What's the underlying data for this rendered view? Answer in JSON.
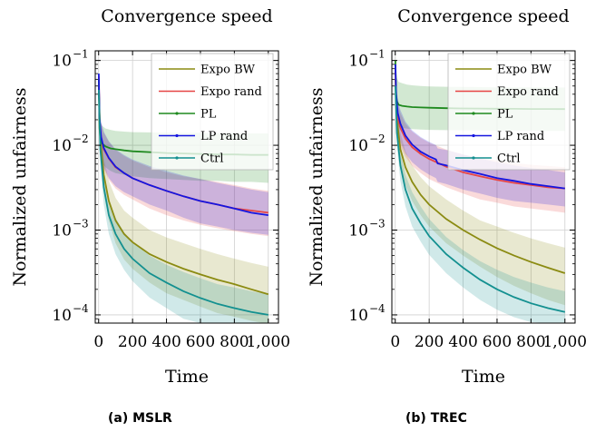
{
  "chart_data": [
    {
      "type": "line",
      "title": "Convergence speed",
      "xlabel": "Time",
      "ylabel": "Normalized unfairness",
      "xlim": [
        -20,
        1060
      ],
      "ylim": [
        8e-05,
        0.13
      ],
      "yscale": "log",
      "xticks": [
        0,
        200,
        400,
        600,
        800,
        1000
      ],
      "xtick_labels": [
        "0",
        "200",
        "400",
        "600",
        "800",
        "1,000"
      ],
      "yticks": [
        0.0001,
        0.001,
        0.01,
        0.1
      ],
      "ytick_labels": [
        [
          "10",
          "−4"
        ],
        [
          "10",
          "−3"
        ],
        [
          "10",
          "−2"
        ],
        [
          "10",
          "−1"
        ]
      ],
      "grid": true,
      "legend_position": "top-right",
      "caption": "(a) MSLR",
      "series": [
        {
          "name": "Expo BW",
          "color": "#8b8b12",
          "x": [
            1,
            10,
            30,
            60,
            100,
            150,
            200,
            300,
            400,
            500,
            600,
            700,
            800,
            900,
            1000
          ],
          "y": [
            0.05,
            0.012,
            0.0045,
            0.0022,
            0.0013,
            0.0009,
            0.00072,
            0.00052,
            0.00042,
            0.00035,
            0.0003,
            0.00026,
            0.00023,
            0.0002,
            0.000175
          ],
          "band_low": [
            0.04,
            0.008,
            0.0028,
            0.0013,
            0.0007,
            0.00045,
            0.00035,
            0.00024,
            0.00018,
            0.00015,
            0.000125,
            0.000105,
            9.5e-05,
            8.5e-05,
            7.8e-05
          ],
          "band_high": [
            0.07,
            0.018,
            0.007,
            0.0038,
            0.0024,
            0.0017,
            0.0014,
            0.001,
            0.00082,
            0.0007,
            0.0006,
            0.00052,
            0.00046,
            0.00041,
            0.00037
          ]
        },
        {
          "name": "Expo rand",
          "color": "#e64545",
          "x": [
            1,
            5,
            15,
            30,
            60,
            100,
            150,
            200,
            300,
            400,
            500,
            600,
            700,
            800,
            900,
            1000
          ],
          "y": [
            0.065,
            0.02,
            0.012,
            0.009,
            0.007,
            0.0055,
            0.0047,
            0.0041,
            0.0034,
            0.0029,
            0.0025,
            0.0022,
            0.002,
            0.0018,
            0.0017,
            0.0016
          ],
          "band_low": [
            0.05,
            0.012,
            0.007,
            0.0052,
            0.0039,
            0.0031,
            0.0026,
            0.0023,
            0.0018,
            0.0015,
            0.0013,
            0.00115,
            0.00105,
            0.00097,
            0.0009,
            0.00085
          ],
          "band_high": [
            0.08,
            0.03,
            0.018,
            0.014,
            0.011,
            0.0088,
            0.0075,
            0.0066,
            0.0055,
            0.0048,
            0.0043,
            0.004,
            0.0037,
            0.0034,
            0.0031,
            0.0029
          ]
        },
        {
          "name": "PL",
          "color": "#1f8a1f",
          "x": [
            1,
            5,
            10,
            20,
            40,
            70,
            100,
            150,
            200,
            300,
            400,
            500,
            600,
            700,
            800,
            900,
            1000
          ],
          "y": [
            0.06,
            0.016,
            0.012,
            0.0105,
            0.0097,
            0.0092,
            0.009,
            0.0087,
            0.0085,
            0.0083,
            0.0081,
            0.008,
            0.0079,
            0.0078,
            0.0078,
            0.0077,
            0.0077
          ],
          "band_low": [
            0.045,
            0.01,
            0.0075,
            0.0062,
            0.0055,
            0.005,
            0.0047,
            0.0045,
            0.0043,
            0.0041,
            0.004,
            0.0039,
            0.0038,
            0.0038,
            0.0037,
            0.0037,
            0.0036
          ],
          "band_high": [
            0.08,
            0.025,
            0.019,
            0.017,
            0.0158,
            0.0152,
            0.0148,
            0.0145,
            0.0143,
            0.0142,
            0.0141,
            0.014,
            0.014,
            0.0139,
            0.0139,
            0.0138,
            0.0138
          ]
        },
        {
          "name": "LP rand",
          "color": "#1515e0",
          "x": [
            1,
            5,
            15,
            30,
            60,
            100,
            150,
            200,
            300,
            400,
            500,
            600,
            700,
            800,
            900,
            1000
          ],
          "y": [
            0.07,
            0.021,
            0.0125,
            0.0093,
            0.0071,
            0.0056,
            0.0047,
            0.0041,
            0.0034,
            0.0029,
            0.0025,
            0.0022,
            0.002,
            0.0018,
            0.0016,
            0.0015
          ],
          "band_low": [
            0.05,
            0.013,
            0.0075,
            0.0055,
            0.0041,
            0.0033,
            0.0028,
            0.0025,
            0.002,
            0.0017,
            0.0014,
            0.0012,
            0.0011,
            0.001,
            0.00093,
            0.00088
          ],
          "band_high": [
            0.085,
            0.031,
            0.019,
            0.0145,
            0.0112,
            0.009,
            0.0077,
            0.0068,
            0.0057,
            0.005,
            0.0044,
            0.004,
            0.0036,
            0.0033,
            0.003,
            0.0028
          ]
        },
        {
          "name": "Ctrl",
          "color": "#139090",
          "x": [
            1,
            10,
            30,
            60,
            100,
            150,
            200,
            300,
            400,
            500,
            600,
            700,
            800,
            900,
            1000
          ],
          "y": [
            0.045,
            0.009,
            0.0032,
            0.0015,
            0.0009,
            0.0006,
            0.00046,
            0.00031,
            0.00024,
            0.00019,
            0.000158,
            0.000135,
            0.00012,
            0.000108,
            0.0001
          ],
          "band_low": [
            0.035,
            0.006,
            0.002,
            0.0009,
            0.00052,
            0.00034,
            0.00025,
            0.00016,
            0.00012,
            9e-05,
            8e-05,
            8e-05,
            8e-05,
            8e-05,
            8e-05
          ],
          "band_high": [
            0.06,
            0.013,
            0.0048,
            0.0023,
            0.0014,
            0.00094,
            0.00072,
            0.0005,
            0.00039,
            0.00032,
            0.00027,
            0.00023,
            0.00021,
            0.00019,
            0.000175
          ]
        }
      ]
    },
    {
      "type": "line",
      "title": "Convergence speed",
      "xlabel": "Time",
      "ylabel": "Normalized unfairness",
      "xlim": [
        -20,
        1060
      ],
      "ylim": [
        8e-05,
        0.13
      ],
      "yscale": "log",
      "xticks": [
        0,
        200,
        400,
        600,
        800,
        1000
      ],
      "xtick_labels": [
        "0",
        "200",
        "400",
        "600",
        "800",
        "1,000"
      ],
      "yticks": [
        0.0001,
        0.001,
        0.01,
        0.1
      ],
      "ytick_labels": [
        [
          "10",
          "−4"
        ],
        [
          "10",
          "−3"
        ],
        [
          "10",
          "−2"
        ],
        [
          "10",
          "−1"
        ]
      ],
      "grid": true,
      "legend_position": "top-right",
      "caption": "(b) TREC",
      "series": [
        {
          "name": "Expo BW",
          "color": "#8b8b12",
          "x": [
            1,
            10,
            30,
            60,
            100,
            150,
            200,
            300,
            400,
            500,
            600,
            700,
            800,
            900,
            1000
          ],
          "y": [
            0.06,
            0.02,
            0.009,
            0.0055,
            0.0037,
            0.0026,
            0.002,
            0.00135,
            0.001,
            0.00077,
            0.00061,
            0.0005,
            0.00042,
            0.00036,
            0.00031
          ],
          "band_low": [
            0.045,
            0.013,
            0.0058,
            0.0034,
            0.0022,
            0.0015,
            0.0011,
            0.0007,
            0.0005,
            0.00037,
            0.00028,
            0.00022,
            0.00018,
            0.00015,
            0.00013
          ],
          "band_high": [
            0.08,
            0.03,
            0.014,
            0.0085,
            0.0058,
            0.0042,
            0.0033,
            0.0023,
            0.0017,
            0.0013,
            0.0011,
            0.00093,
            0.0008,
            0.0007,
            0.00062
          ]
        },
        {
          "name": "Expo rand",
          "color": "#e64545",
          "x": [
            1,
            5,
            15,
            30,
            60,
            100,
            150,
            200,
            300,
            400,
            500,
            600,
            700,
            800,
            900,
            1000
          ],
          "y": [
            0.08,
            0.035,
            0.021,
            0.016,
            0.012,
            0.0095,
            0.0079,
            0.0069,
            0.0056,
            0.0048,
            0.0043,
            0.0039,
            0.0036,
            0.0034,
            0.0032,
            0.0031
          ],
          "band_low": [
            0.06,
            0.022,
            0.013,
            0.0098,
            0.0073,
            0.0057,
            0.0047,
            0.004,
            0.0032,
            0.0027,
            0.0023,
            0.0021,
            0.0019,
            0.0018,
            0.0017,
            0.0016
          ],
          "band_high": [
            0.1,
            0.05,
            0.031,
            0.024,
            0.018,
            0.0145,
            0.0122,
            0.0107,
            0.0089,
            0.0078,
            0.0071,
            0.0066,
            0.0062,
            0.0059,
            0.0057,
            0.0055
          ]
        },
        {
          "name": "PL",
          "color": "#1f8a1f",
          "x": [
            1,
            5,
            10,
            20,
            40,
            70,
            100,
            150,
            200,
            300,
            400,
            500,
            600,
            700,
            800,
            900,
            1000
          ],
          "y": [
            0.1,
            0.04,
            0.033,
            0.03,
            0.0292,
            0.0286,
            0.0282,
            0.0279,
            0.0277,
            0.0274,
            0.0272,
            0.0271,
            0.027,
            0.0269,
            0.0268,
            0.0268,
            0.0267
          ],
          "band_low": [
            0.08,
            0.022,
            0.018,
            0.0165,
            0.016,
            0.0157,
            0.0155,
            0.0153,
            0.0152,
            0.0151,
            0.015,
            0.015,
            0.0149,
            0.0149,
            0.0149,
            0.0148,
            0.0148
          ],
          "band_high": [
            0.125,
            0.075,
            0.062,
            0.056,
            0.054,
            0.052,
            0.051,
            0.05,
            0.0495,
            0.049,
            0.0487,
            0.0485,
            0.0483,
            0.0482,
            0.0481,
            0.048,
            0.048
          ]
        },
        {
          "name": "LP rand",
          "color": "#1515e0",
          "x": [
            1,
            5,
            15,
            30,
            60,
            100,
            150,
            200,
            240,
            250,
            300,
            400,
            500,
            600,
            700,
            800,
            900,
            1000
          ],
          "y": [
            0.09,
            0.04,
            0.024,
            0.018,
            0.013,
            0.0102,
            0.0084,
            0.0074,
            0.0068,
            0.0061,
            0.0058,
            0.0051,
            0.0046,
            0.0041,
            0.0038,
            0.0035,
            0.0033,
            0.0031
          ],
          "band_low": [
            0.07,
            0.025,
            0.015,
            0.011,
            0.008,
            0.0063,
            0.0052,
            0.0045,
            0.0041,
            0.0037,
            0.0035,
            0.003,
            0.0027,
            0.0024,
            0.0022,
            0.0021,
            0.002,
            0.0019
          ],
          "band_high": [
            0.11,
            0.058,
            0.035,
            0.026,
            0.019,
            0.015,
            0.0125,
            0.011,
            0.0101,
            0.0092,
            0.0088,
            0.0078,
            0.007,
            0.0063,
            0.0058,
            0.0054,
            0.0051,
            0.0048
          ]
        },
        {
          "name": "Ctrl",
          "color": "#139090",
          "x": [
            1,
            10,
            30,
            60,
            100,
            150,
            200,
            300,
            400,
            500,
            600,
            700,
            800,
            900,
            1000
          ],
          "y": [
            0.05,
            0.014,
            0.0058,
            0.003,
            0.0018,
            0.0012,
            0.00085,
            0.00052,
            0.00036,
            0.00026,
            0.0002,
            0.000162,
            0.000137,
            0.00012,
            0.000108
          ],
          "band_low": [
            0.04,
            0.0095,
            0.0038,
            0.0019,
            0.0011,
            0.00073,
            0.00051,
            0.00031,
            0.00021,
            0.00015,
            0.000115,
            9.4e-05,
            8.2e-05,
            8e-05,
            8e-05
          ],
          "band_high": [
            0.065,
            0.02,
            0.0085,
            0.0045,
            0.0028,
            0.0019,
            0.00135,
            0.00083,
            0.00058,
            0.00043,
            0.00034,
            0.00028,
            0.00024,
            0.00021,
            0.00019
          ]
        }
      ]
    }
  ]
}
